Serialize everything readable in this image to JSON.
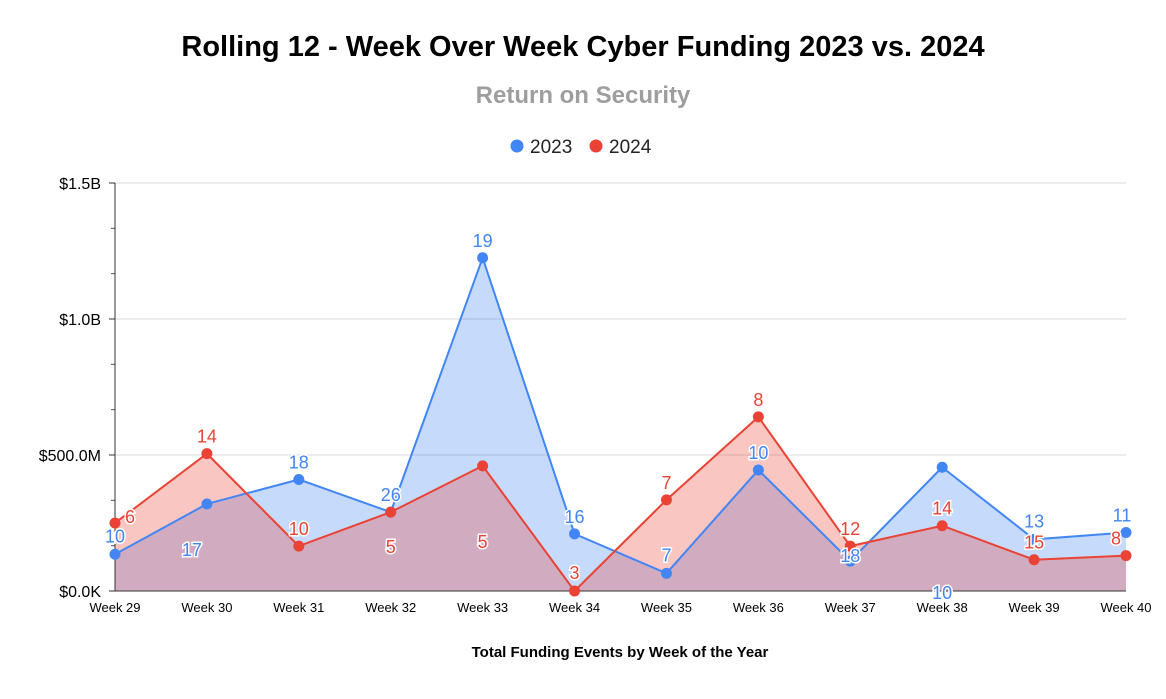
{
  "chart_data": {
    "type": "area",
    "title": "Rolling 12 - Week Over Week Cyber Funding 2023 vs. 2024",
    "subtitle": "Return on Security",
    "xlabel": "Total Funding Events by Week of the Year",
    "ylabel": "",
    "categories": [
      "Week 29",
      "Week 30",
      "Week 31",
      "Week 32",
      "Week 33",
      "Week 34",
      "Week 35",
      "Week 36",
      "Week 37",
      "Week 38",
      "Week 39",
      "Week 40"
    ],
    "ylim": [
      0,
      1500
    ],
    "yticks": [
      {
        "value": 0,
        "label": "$0.0K"
      },
      {
        "value": 500,
        "label": "$500.0M"
      },
      {
        "value": 1000,
        "label": "$1.0B"
      },
      {
        "value": 1500,
        "label": "$1.5B"
      }
    ],
    "grid": true,
    "legend_position": "top",
    "series": [
      {
        "name": "2023",
        "color": "#4285f4",
        "fill": "#c6d9f7",
        "values": [
          135,
          320,
          410,
          290,
          1225,
          210,
          65,
          445,
          110,
          455,
          190,
          215
        ],
        "labels": [
          "10",
          "17",
          "18",
          "26",
          "19",
          "16",
          "7",
          "10",
          "18",
          "10",
          "13",
          "11"
        ]
      },
      {
        "name": "2024",
        "color": "#ea4335",
        "fill": "#f4c6c2",
        "values": [
          250,
          505,
          165,
          290,
          460,
          0,
          335,
          640,
          165,
          240,
          115,
          130
        ],
        "labels": [
          "6",
          "14",
          "10",
          "5",
          "5",
          "3",
          "7",
          "8",
          "12",
          "14",
          "15",
          "8"
        ]
      }
    ]
  }
}
